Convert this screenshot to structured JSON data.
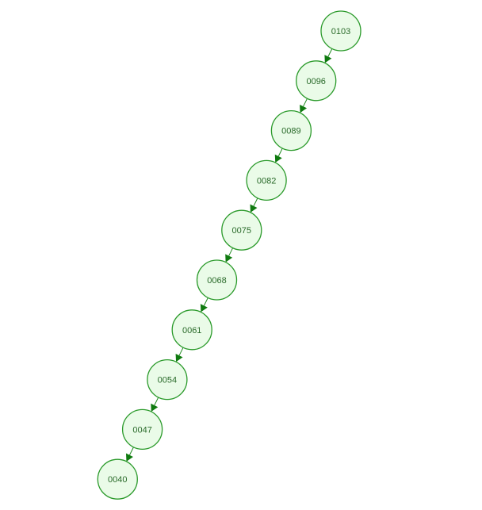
{
  "diagram": {
    "type": "linked-chain",
    "colors": {
      "node_fill": "#eafbe8",
      "node_stroke": "#2a9a2a",
      "edge": "#1f8a1f",
      "arrowhead": "#0f7a0f",
      "label": "#2a6a2a"
    },
    "nodes": [
      {
        "id": "n0",
        "label": "0103"
      },
      {
        "id": "n1",
        "label": "0096"
      },
      {
        "id": "n2",
        "label": "0089"
      },
      {
        "id": "n3",
        "label": "0082"
      },
      {
        "id": "n4",
        "label": "0075"
      },
      {
        "id": "n5",
        "label": "0068"
      },
      {
        "id": "n6",
        "label": "0061"
      },
      {
        "id": "n7",
        "label": "0054"
      },
      {
        "id": "n8",
        "label": "0047"
      },
      {
        "id": "n9",
        "label": "0040"
      }
    ],
    "edges": [
      {
        "from": "n0",
        "to": "n1"
      },
      {
        "from": "n1",
        "to": "n2"
      },
      {
        "from": "n2",
        "to": "n3"
      },
      {
        "from": "n3",
        "to": "n4"
      },
      {
        "from": "n4",
        "to": "n5"
      },
      {
        "from": "n5",
        "to": "n6"
      },
      {
        "from": "n6",
        "to": "n7"
      },
      {
        "from": "n7",
        "to": "n8"
      },
      {
        "from": "n8",
        "to": "n9"
      }
    ]
  }
}
